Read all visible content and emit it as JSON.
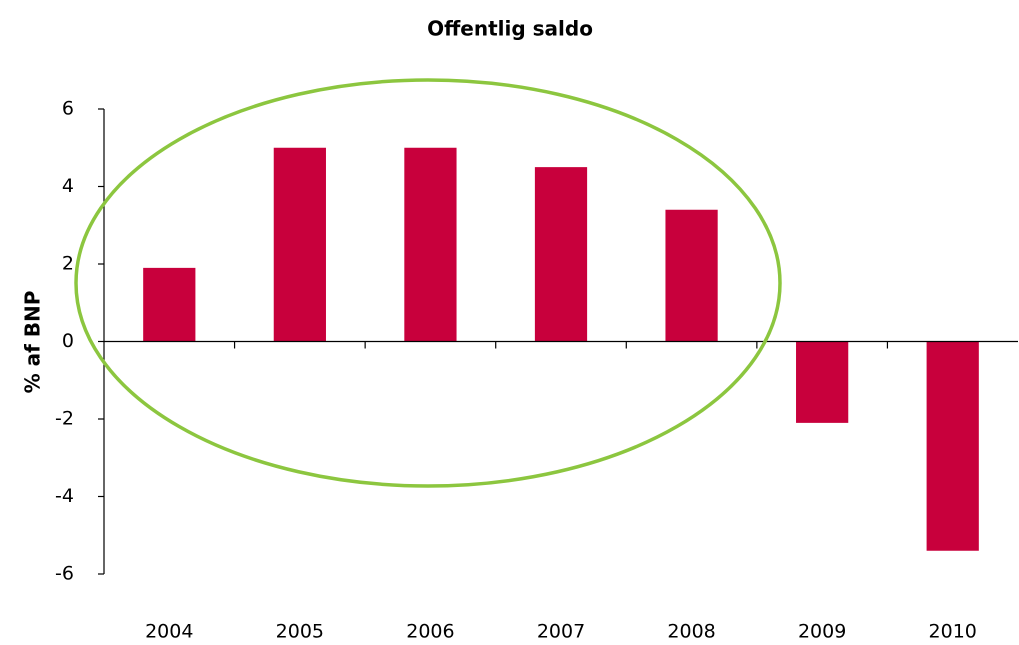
{
  "chart_data": {
    "type": "bar",
    "title": "Offentlig saldo",
    "y_label": "% af BNP",
    "categories": [
      "2004",
      "2005",
      "2006",
      "2007",
      "2008",
      "2009",
      "2010"
    ],
    "values": [
      1.9,
      5.0,
      5.0,
      4.5,
      3.4,
      -2.1,
      -5.4
    ],
    "color": "#c8003c",
    "ylim": [
      -6,
      6
    ],
    "yticks": [
      -6,
      -4,
      -2,
      0,
      2,
      4,
      6
    ],
    "grid": false
  }
}
